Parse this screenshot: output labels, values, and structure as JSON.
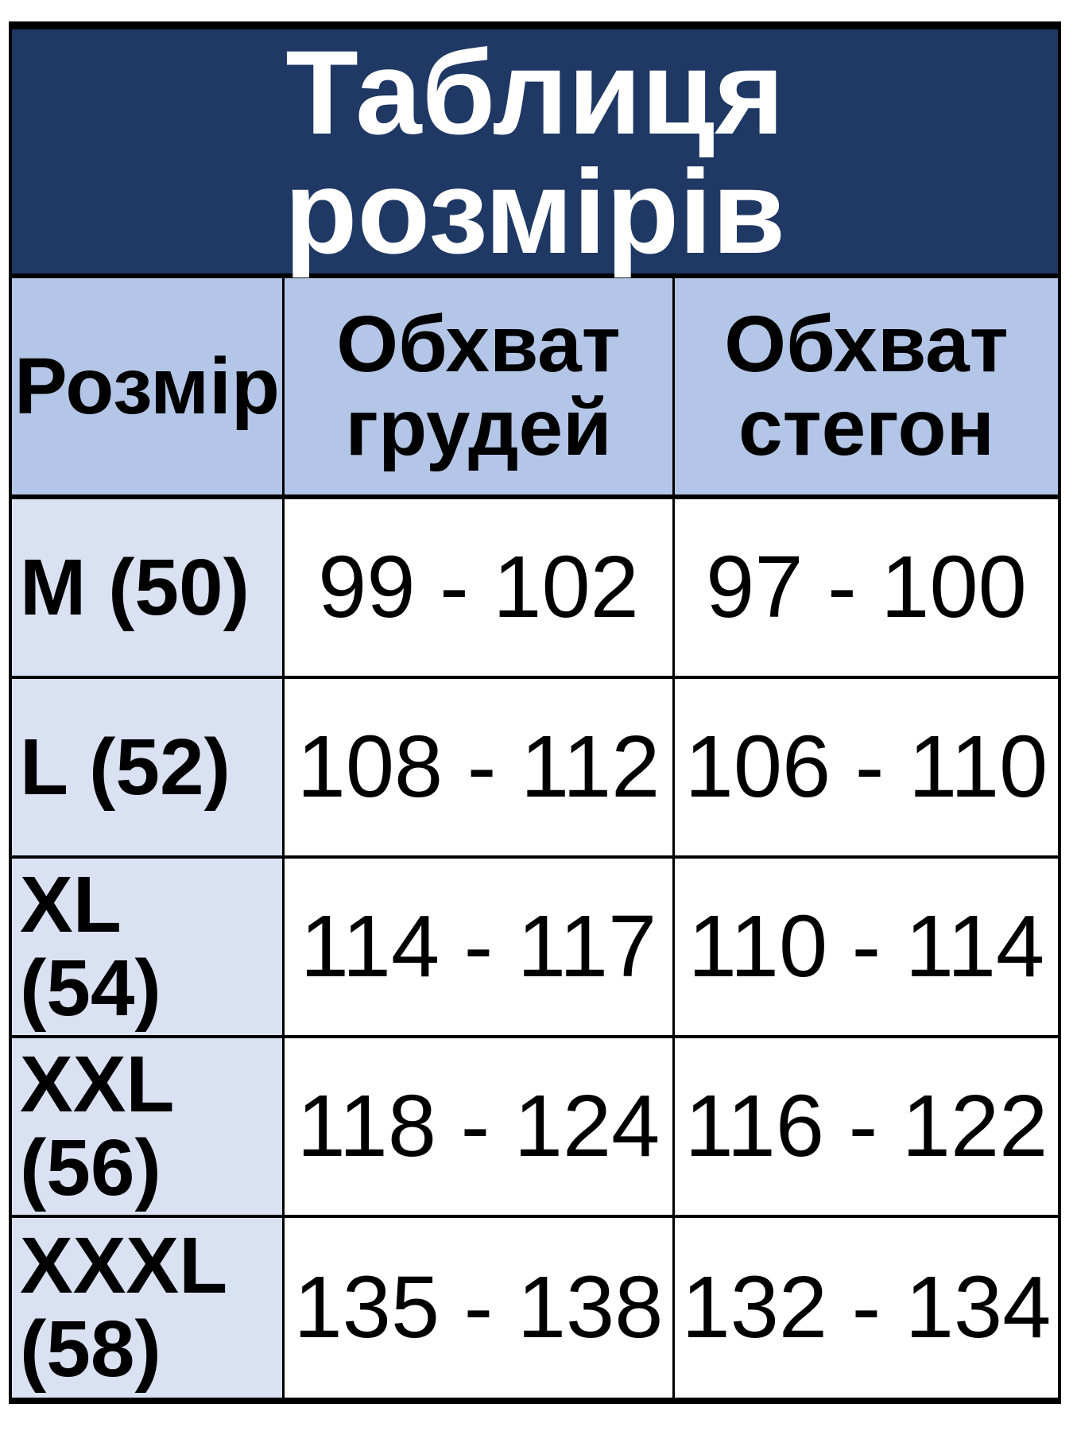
{
  "title": "Таблиця розмірів",
  "columns": [
    "Розмір",
    "Обхват грудей",
    "Обхват стегон"
  ],
  "rows": [
    {
      "size": "M (50)",
      "chest": "99 - 102",
      "hips": "97 - 100"
    },
    {
      "size": "L (52)",
      "chest": "108 - 112",
      "hips": "106 - 110"
    },
    {
      "size": "XL (54)",
      "chest": "114 - 117",
      "hips": "110 - 114"
    },
    {
      "size": "XXL (56)",
      "chest": "118 - 124",
      "hips": "116 - 122"
    },
    {
      "size": "XXXL (58)",
      "chest": "135 - 138",
      "hips": "132 - 134"
    }
  ],
  "colors": {
    "title_bg": "#1f3864",
    "header_bg": "#b4c6e7",
    "size_col_bg": "#d9e1f2",
    "cell_bg": "#ffffff",
    "border": "#000000"
  }
}
